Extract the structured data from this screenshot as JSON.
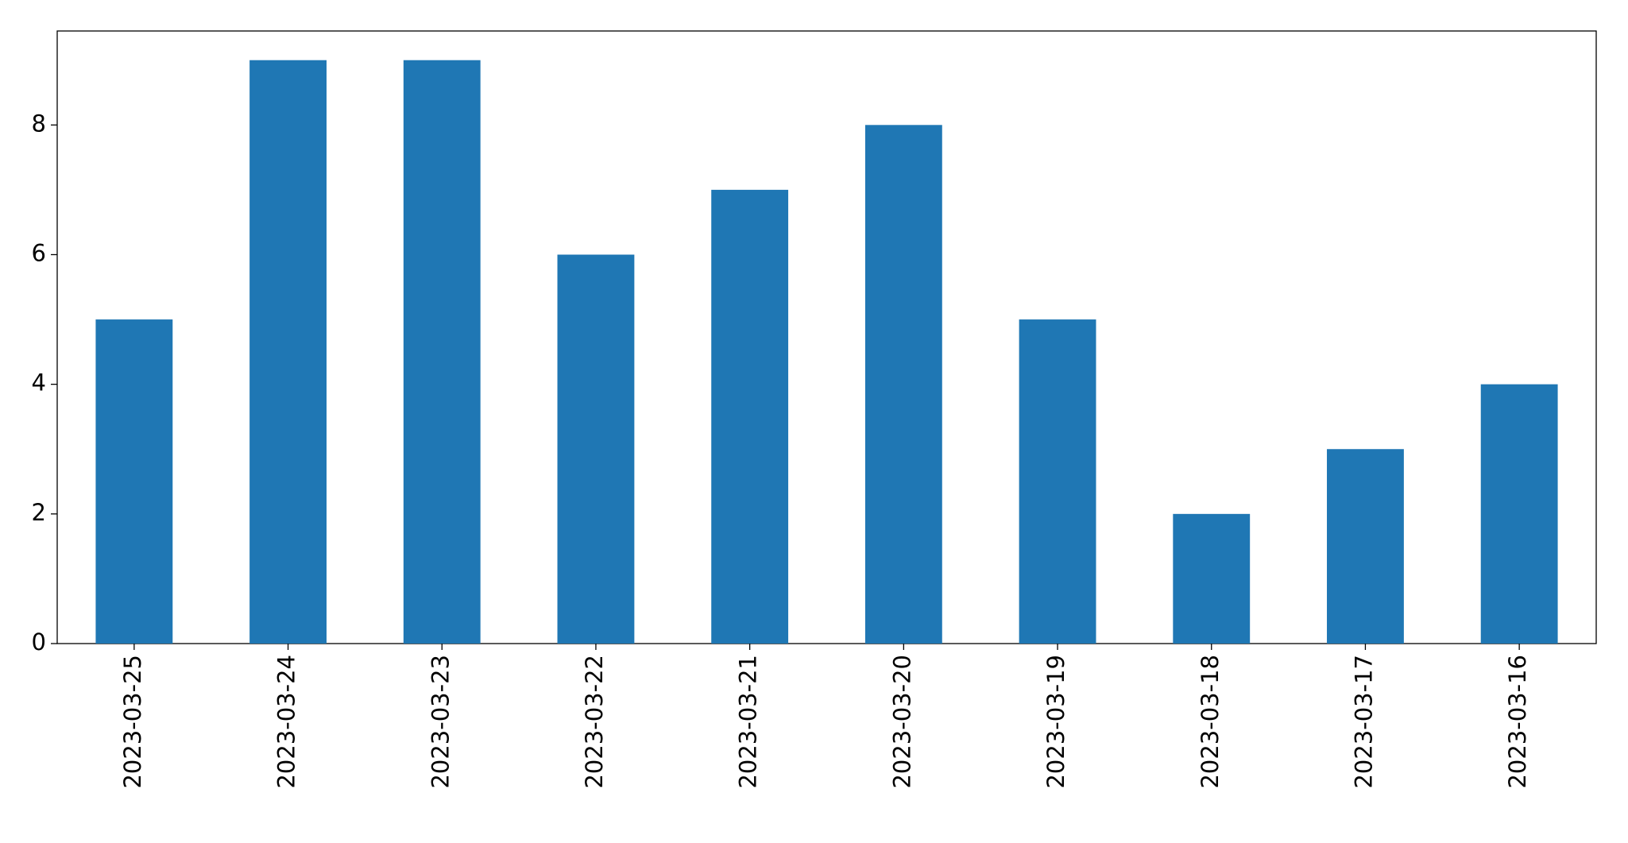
{
  "chart_data": {
    "type": "bar",
    "categories": [
      "2023-03-25",
      "2023-03-24",
      "2023-03-23",
      "2023-03-22",
      "2023-03-21",
      "2023-03-20",
      "2023-03-19",
      "2023-03-18",
      "2023-03-17",
      "2023-03-16"
    ],
    "values": [
      5,
      9,
      9,
      6,
      7,
      8,
      5,
      2,
      3,
      4
    ],
    "color": "#1f77b4",
    "ylim": [
      0,
      9.45
    ],
    "yticks": [
      0,
      2,
      4,
      6,
      8
    ],
    "grid": false
  }
}
